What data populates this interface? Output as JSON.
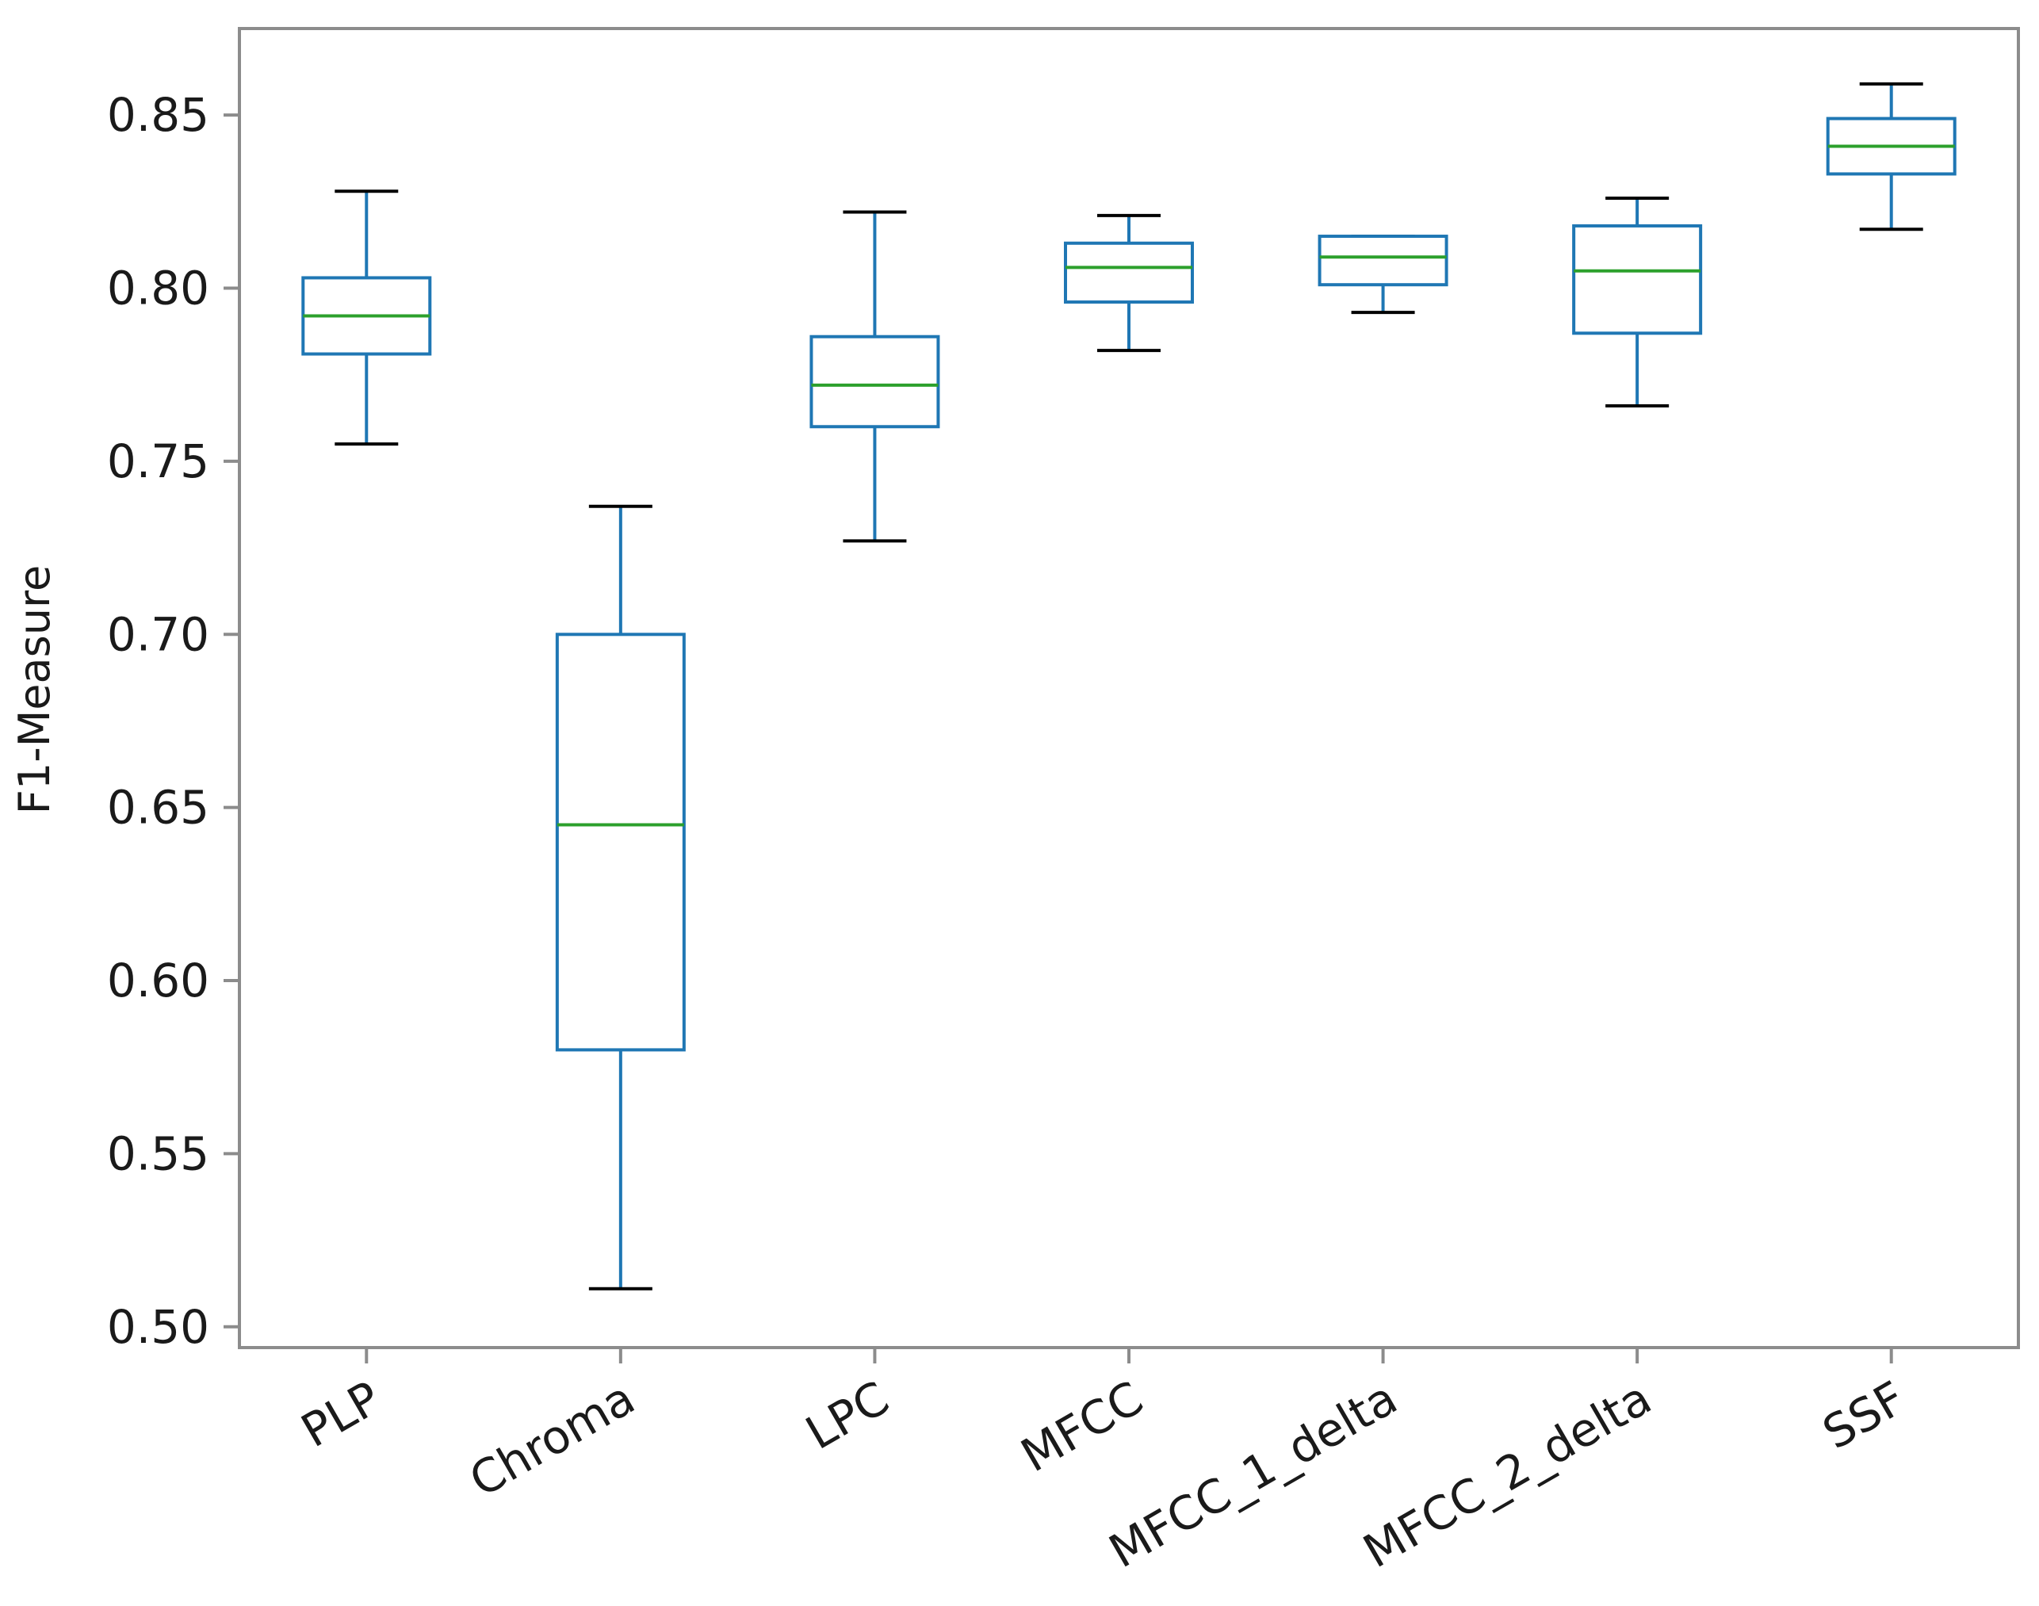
{
  "chart_data": {
    "type": "box",
    "title": "",
    "xlabel": "",
    "ylabel": "F1-Measure",
    "ylim": [
      0.494,
      0.875
    ],
    "yticks": [
      "0.50",
      "0.55",
      "0.60",
      "0.65",
      "0.70",
      "0.75",
      "0.80",
      "0.85"
    ],
    "grid": false,
    "categories": [
      "PLP",
      "Chroma",
      "LPC",
      "MFCC",
      "MFCC_1_delta",
      "MFCC_2_delta",
      "SSF"
    ],
    "boxes": [
      {
        "name": "PLP",
        "whisker_low": 0.755,
        "q1": 0.781,
        "median": 0.792,
        "q3": 0.803,
        "whisker_high": 0.828
      },
      {
        "name": "Chroma",
        "whisker_low": 0.511,
        "q1": 0.58,
        "median": 0.645,
        "q3": 0.7,
        "whisker_high": 0.737
      },
      {
        "name": "LPC",
        "whisker_low": 0.727,
        "q1": 0.76,
        "median": 0.772,
        "q3": 0.786,
        "whisker_high": 0.822
      },
      {
        "name": "MFCC",
        "whisker_low": 0.782,
        "q1": 0.796,
        "median": 0.806,
        "q3": 0.813,
        "whisker_high": 0.821
      },
      {
        "name": "MFCC_1_delta",
        "whisker_low": 0.793,
        "q1": 0.801,
        "median": 0.809,
        "q3": 0.815,
        "whisker_high": 0.815
      },
      {
        "name": "MFCC_2_delta",
        "whisker_low": 0.766,
        "q1": 0.787,
        "median": 0.805,
        "q3": 0.818,
        "whisker_high": 0.826
      },
      {
        "name": "SSF",
        "whisker_low": 0.817,
        "q1": 0.833,
        "median": 0.841,
        "q3": 0.849,
        "whisker_high": 0.859
      }
    ],
    "colors": {
      "box": "#1f77b4",
      "median": "#2ca02c",
      "cap": "#000000",
      "frame": "#8c8c8c",
      "text": "#1a1a1a"
    }
  }
}
